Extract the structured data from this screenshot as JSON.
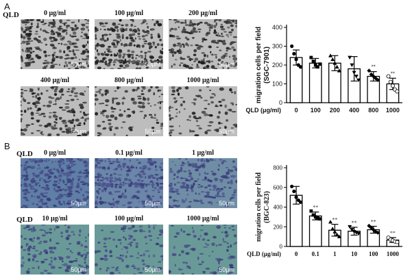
{
  "figure": {
    "panelA": {
      "label": "A",
      "qld": "QLD",
      "conc_labels": [
        "0 μg/ml",
        "100 μg/ml",
        "200 μg/ml",
        "400 μg/ml",
        "800 μg/ml",
        "1000 μg/ml"
      ],
      "scale_text": "50μm"
    },
    "panelB": {
      "label": "B",
      "qld_top": "QLD",
      "qld_bottom": "QLD",
      "conc_labels": [
        "0 μg/ml",
        "0.1 μg/ml",
        "1 μg/ml",
        "10 μg/ml",
        "100 μg/ml",
        "1000 μg/ml"
      ],
      "scale_text": "50μm"
    }
  },
  "chart_data": [
    {
      "type": "bar",
      "categories": [
        "0",
        "100",
        "200",
        "400",
        "800",
        "1000"
      ],
      "values": [
        240,
        210,
        210,
        180,
        140,
        100
      ],
      "errors": [
        40,
        25,
        40,
        65,
        25,
        30
      ],
      "significance": [
        "",
        "",
        "",
        "",
        "**",
        "**"
      ],
      "markers": [
        "circle",
        "square",
        "triangle",
        "triangle-down",
        "diamond",
        "circle-open"
      ],
      "points": [
        [
          300,
          260,
          230,
          200,
          190
        ],
        [
          240,
          220,
          200,
          190,
          205
        ],
        [
          250,
          230,
          210,
          190,
          170
        ],
        [
          240,
          200,
          160,
          140,
          120
        ],
        [
          170,
          150,
          140,
          130,
          120
        ],
        [
          140,
          110,
          90,
          70,
          60
        ]
      ],
      "ylabel": "migration cells per field",
      "ylabel2": "(SGC-7901)",
      "xlabel": "QLD (μg/ml)",
      "ylim": [
        0,
        400
      ],
      "yticks": [
        0,
        100,
        200,
        300,
        400
      ]
    },
    {
      "type": "bar",
      "categories": [
        "0",
        "0.1",
        "1",
        "10",
        "100",
        "1000"
      ],
      "values": [
        520,
        310,
        165,
        155,
        170,
        65
      ],
      "errors": [
        90,
        40,
        60,
        40,
        35,
        25
      ],
      "significance": [
        "",
        "**",
        "**",
        "**",
        "**",
        "**"
      ],
      "markers": [
        "circle",
        "square",
        "triangle",
        "triangle-down",
        "diamond",
        "circle-open"
      ],
      "points": [
        [
          610,
          560,
          500,
          470,
          450
        ],
        [
          360,
          320,
          300,
          290,
          280
        ],
        [
          250,
          180,
          150,
          120,
          100
        ],
        [
          200,
          170,
          150,
          140,
          130
        ],
        [
          210,
          190,
          170,
          150,
          140
        ],
        [
          90,
          70,
          60,
          50,
          45
        ]
      ],
      "ylabel": "migration cells per field",
      "ylabel2": "(BGC-823)",
      "xlabel": "QLD (μg/ml)",
      "ylim": [
        0,
        800
      ],
      "yticks": [
        0,
        200,
        400,
        600,
        800
      ]
    }
  ]
}
